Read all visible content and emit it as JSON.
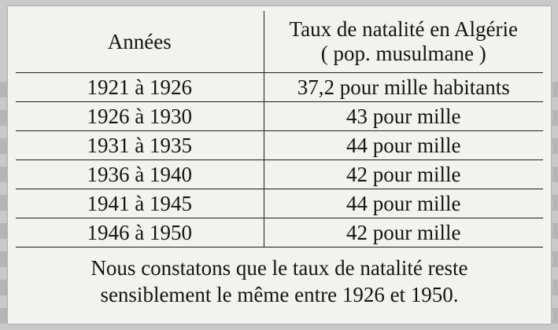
{
  "table": {
    "header": {
      "years": "Années",
      "rate_line1": "Taux de natalité en Algérie",
      "rate_line2": "( pop. musulmane )"
    },
    "rows": [
      {
        "period": "1921 à 1926",
        "rate": "37,2 pour mille habitants"
      },
      {
        "period": "1926 à 1930",
        "rate": "43 pour mille"
      },
      {
        "period": "1931 à 1935",
        "rate": "44 pour mille"
      },
      {
        "period": "1936 à 1940",
        "rate": "42 pour mille"
      },
      {
        "period": "1941 à 1945",
        "rate": "44 pour mille"
      },
      {
        "period": "1946 à 1950",
        "rate": "42 pour mille"
      }
    ],
    "conclusion_line1": "Nous constatons que le taux de natalité reste",
    "conclusion_line2": "sensiblement le même entre 1926 et 1950."
  }
}
